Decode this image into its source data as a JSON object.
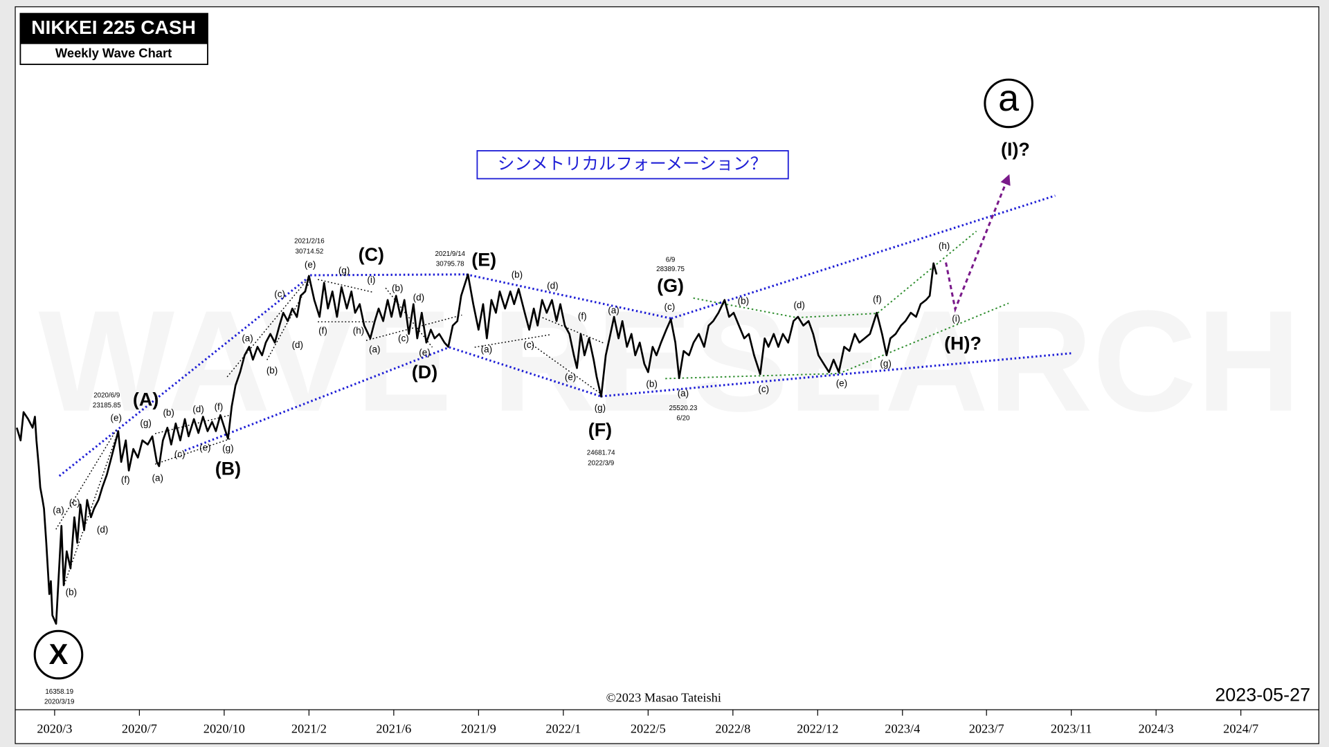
{
  "chart_data": {
    "type": "line",
    "title": "NIKKEI 225 CASH",
    "subtitle": "Weekly Wave Chart",
    "box_text": "シンメトリカルフォーメーション？",
    "copyright": "©2023 Masao Tateishi",
    "date": "2023-05-27",
    "watermark": "WAVE RESEARCH",
    "circle_labels": [
      "X",
      "a"
    ],
    "wave_labels": [
      "(A)",
      "(B)",
      "(C)",
      "(D)",
      "(E)",
      "(F)",
      "(G)",
      "(H)?",
      "(I)?"
    ],
    "sub_labels": [
      "(a)",
      "(b)",
      "(c)",
      "(d)",
      "(e)",
      "(f)",
      "(g)",
      "(a)",
      "(b)",
      "(c)",
      "(d)",
      "(e)",
      "(f)",
      "(g)",
      "(a)",
      "(b)",
      "(c)",
      "(d)",
      "(e)",
      "(f)",
      "(g)",
      "(i)",
      "(h)",
      "(a)",
      "(b)",
      "(c)",
      "(d)",
      "(e)",
      "(a)",
      "(b)",
      "(c)",
      "(d)",
      "(e)",
      "(f)",
      "(g)",
      "(a)",
      "(b)",
      "(c)",
      "(a)",
      "(b)",
      "(c)",
      "(d)",
      "(e)",
      "(f)",
      "(g)",
      "(h)",
      "(i)"
    ],
    "price_notes": [
      "16358.19",
      "2020/3/19",
      "2020/6/9",
      "23185.85",
      "2021/2/16",
      "30714.52",
      "2021/9/14",
      "30795.78",
      "24681.74",
      "2022/3/9",
      "6/9",
      "28389.75",
      "25520.23",
      "6/20"
    ],
    "color": "#000000",
    "log": true,
    "ylim": [
      14000,
      50000
    ],
    "xlim": [
      "2020/1/25",
      "2024/10/12"
    ],
    "xticks": [
      {
        "value": "2020/3/17",
        "label": "2020/3"
      },
      {
        "value": "2020/7/7",
        "label": "2020/7"
      },
      {
        "value": "2020/10/27",
        "label": "2020/10"
      },
      {
        "value": "2021/2/16",
        "label": "2021/2"
      },
      {
        "value": "2021/6/8",
        "label": "2021/6"
      },
      {
        "value": "2021/9/28",
        "label": "2021/9"
      },
      {
        "value": "2022/1/18",
        "label": "2022/1"
      },
      {
        "value": "2022/5/10",
        "label": "2022/5"
      },
      {
        "value": "2022/8/30",
        "label": "2022/8"
      },
      {
        "value": "2022/12/20",
        "label": "2022/12"
      },
      {
        "value": "2023/4/11",
        "label": "2023/4"
      },
      {
        "value": "2023/7/31",
        "label": "2023/7"
      },
      {
        "value": "2023/11/20",
        "label": "2023/11"
      },
      {
        "value": "2024/3/11",
        "label": "2024/3"
      },
      {
        "value": "2024/7/1",
        "label": "2024/7"
      }
    ],
    "x": [
      "2020/1/27",
      "2020/2/1",
      "2020/2/5",
      "2020/2/11",
      "2020/2/17",
      "2020/2/20",
      "2020/2/22",
      "2020/2/25",
      "2020/2/27",
      "2020/3/1",
      "2020/3/3",
      "2020/3/6",
      "2020/3/10",
      "2020/3/12",
      "2020/3/14",
      "2020/3/19",
      "2020/3/26",
      "2020/3/29",
      "2020/4/2",
      "2020/4/7",
      "2020/4/12",
      "2020/4/16",
      "2020/4/20",
      "2020/4/25",
      "2020/4/29",
      "2020/5/4",
      "2020/5/8",
      "2020/5/14",
      "2020/5/19",
      "2020/5/25",
      "2020/5/31",
      "2020/6/9",
      "2020/6/13",
      "2020/6/19",
      "2020/6/23",
      "2020/6/29",
      "2020/7/5",
      "2020/7/11",
      "2020/7/18",
      "2020/7/24",
      "2020/7/30",
      "2020/8/2",
      "2020/8/7",
      "2020/8/13",
      "2020/8/18",
      "2020/8/24",
      "2020/8/30",
      "2020/9/5",
      "2020/9/10",
      "2020/9/17",
      "2020/9/23",
      "2020/9/29",
      "2020/10/5",
      "2020/10/11",
      "2020/10/16",
      "2020/10/22",
      "2020/10/28",
      "2020/11/1",
      "2020/11/6",
      "2020/11/11",
      "2020/11/17",
      "2020/11/23",
      "2020/11/29",
      "2020/12/4",
      "2020/12/10",
      "2020/12/16",
      "2020/12/21",
      "2020/12/27",
      "2021/1/2",
      "2021/1/8",
      "2021/1/13",
      "2021/1/19",
      "2021/1/25",
      "2021/1/31",
      "2021/2/5",
      "2021/2/11",
      "2021/2/16",
      "2021/2/23",
      "2021/3/2",
      "2021/3/8",
      "2021/3/13",
      "2021/3/19",
      "2021/3/25",
      "2021/3/31",
      "2021/4/7",
      "2021/4/13",
      "2021/4/18",
      "2021/4/24",
      "2021/4/30",
      "2021/5/8",
      "2021/5/14",
      "2021/5/19",
      "2021/5/25",
      "2021/5/31",
      "2021/6/5",
      "2021/6/11",
      "2021/6/17",
      "2021/6/22",
      "2021/6/28",
      "2021/7/4",
      "2021/7/9",
      "2021/7/15",
      "2021/7/21",
      "2021/7/27",
      "2021/8/1",
      "2021/8/7",
      "2021/8/14",
      "2021/8/19",
      "2021/8/25",
      "2021/8/31",
      "2021/9/5",
      "2021/9/14",
      "2021/9/21",
      "2021/9/28",
      "2021/10/4",
      "2021/10/9",
      "2021/10/15",
      "2021/10/21",
      "2021/10/26",
      "2021/11/2",
      "2021/11/9",
      "2021/11/14",
      "2021/11/20",
      "2021/11/28",
      "2021/12/4",
      "2021/12/10",
      "2021/12/15",
      "2021/12/21",
      "2021/12/27",
      "2022/1/3",
      "2022/1/9",
      "2022/1/14",
      "2022/1/20",
      "2022/1/26",
      "2022/2/1",
      "2022/2/5",
      "2022/2/10",
      "2022/2/15",
      "2022/2/21",
      "2022/2/27",
      "2022/3/3",
      "2022/3/9",
      "2022/3/15",
      "2022/3/20",
      "2022/3/26",
      "2022/4/1",
      "2022/4/6",
      "2022/4/12",
      "2022/4/18",
      "2022/4/23",
      "2022/4/29",
      "2022/5/5",
      "2022/5/10",
      "2022/5/16",
      "2022/5/21",
      "2022/5/27",
      "2022/6/3",
      "2022/6/9",
      "2022/6/15",
      "2022/6/20",
      "2022/6/26",
      "2022/7/3",
      "2022/7/9",
      "2022/7/16",
      "2022/7/23",
      "2022/7/29",
      "2022/8/4",
      "2022/8/11",
      "2022/8/19",
      "2022/8/25",
      "2022/8/31",
      "2022/9/7",
      "2022/9/14",
      "2022/9/20",
      "2022/9/27",
      "2022/10/5",
      "2022/10/11",
      "2022/10/16",
      "2022/10/23",
      "2022/10/29",
      "2022/11/4",
      "2022/11/11",
      "2022/11/18",
      "2022/11/24",
      "2022/12/1",
      "2022/12/8",
      "2022/12/14",
      "2022/12/21",
      "2022/12/28",
      "2023/1/4",
      "2023/1/10",
      "2023/1/17",
      "2023/1/24",
      "2023/1/31",
      "2023/2/7",
      "2023/2/13",
      "2023/2/20",
      "2023/2/27",
      "2023/3/8",
      "2023/3/15",
      "2023/3/21",
      "2023/3/26",
      "2023/4/2",
      "2023/4/9",
      "2023/4/15",
      "2023/4/22",
      "2023/4/29",
      "2023/5/5",
      "2023/5/12",
      "2023/5/17",
      "2023/5/22",
      "2023/5/26"
    ],
    "values": [
      23330,
      22800,
      24000,
      23700,
      23330,
      23800,
      22800,
      21760,
      20940,
      20470,
      20150,
      18940,
      17260,
      17670,
      16610,
      16358.19,
      19530,
      17540,
      18650,
      18080,
      19840,
      18940,
      20300,
      19380,
      20470,
      19840,
      20150,
      20470,
      20940,
      21430,
      22100,
      23185.85,
      21930,
      22800,
      21590,
      22450,
      22100,
      22800,
      22630,
      22970,
      21930,
      21760,
      22800,
      23330,
      22630,
      23510,
      22800,
      23700,
      22970,
      23700,
      23110,
      23800,
      23185,
      23580,
      23185,
      23870,
      23260,
      22870,
      24250,
      25190,
      25800,
      26600,
      27010,
      26390,
      27010,
      26600,
      27220,
      27650,
      27220,
      28070,
      28730,
      28300,
      28950,
      28510,
      29630,
      29860,
      30714.52,
      29400,
      28520,
      30330,
      28950,
      29860,
      28520,
      30100,
      28950,
      29860,
      28730,
      29180,
      28070,
      27430,
      28300,
      28950,
      28300,
      29400,
      28520,
      29630,
      28520,
      29400,
      27650,
      29180,
      27430,
      28730,
      27220,
      27860,
      27430,
      27650,
      27220,
      27010,
      28070,
      28300,
      29630,
      30795.78,
      29180,
      27860,
      29180,
      27430,
      29400,
      28730,
      29860,
      28950,
      29860,
      29180,
      30000,
      28730,
      27860,
      28950,
      28070,
      29400,
      28730,
      29400,
      28300,
      29180,
      28070,
      27650,
      26600,
      25990,
      27650,
      26600,
      27430,
      26390,
      25590,
      24681.74,
      26600,
      27430,
      28520,
      27430,
      28300,
      27010,
      27650,
      26600,
      27220,
      26190,
      25800,
      27010,
      26600,
      27220,
      27860,
      28389.75,
      27220,
      25520.23,
      26810,
      26600,
      27220,
      27650,
      27010,
      28070,
      28300,
      28730,
      29400,
      28520,
      28730,
      28070,
      27430,
      27650,
      26600,
      25710,
      27430,
      27010,
      27650,
      27010,
      27650,
      27220,
      28300,
      28520,
      28070,
      28300,
      27650,
      26600,
      26190,
      25800,
      26390,
      25800,
      27010,
      26810,
      27650,
      27220,
      27430,
      27650,
      28730,
      27650,
      26600,
      27430,
      27650,
      28070,
      28300,
      28730,
      28520,
      29180,
      29400,
      29630,
      31420,
      30795
    ]
  }
}
